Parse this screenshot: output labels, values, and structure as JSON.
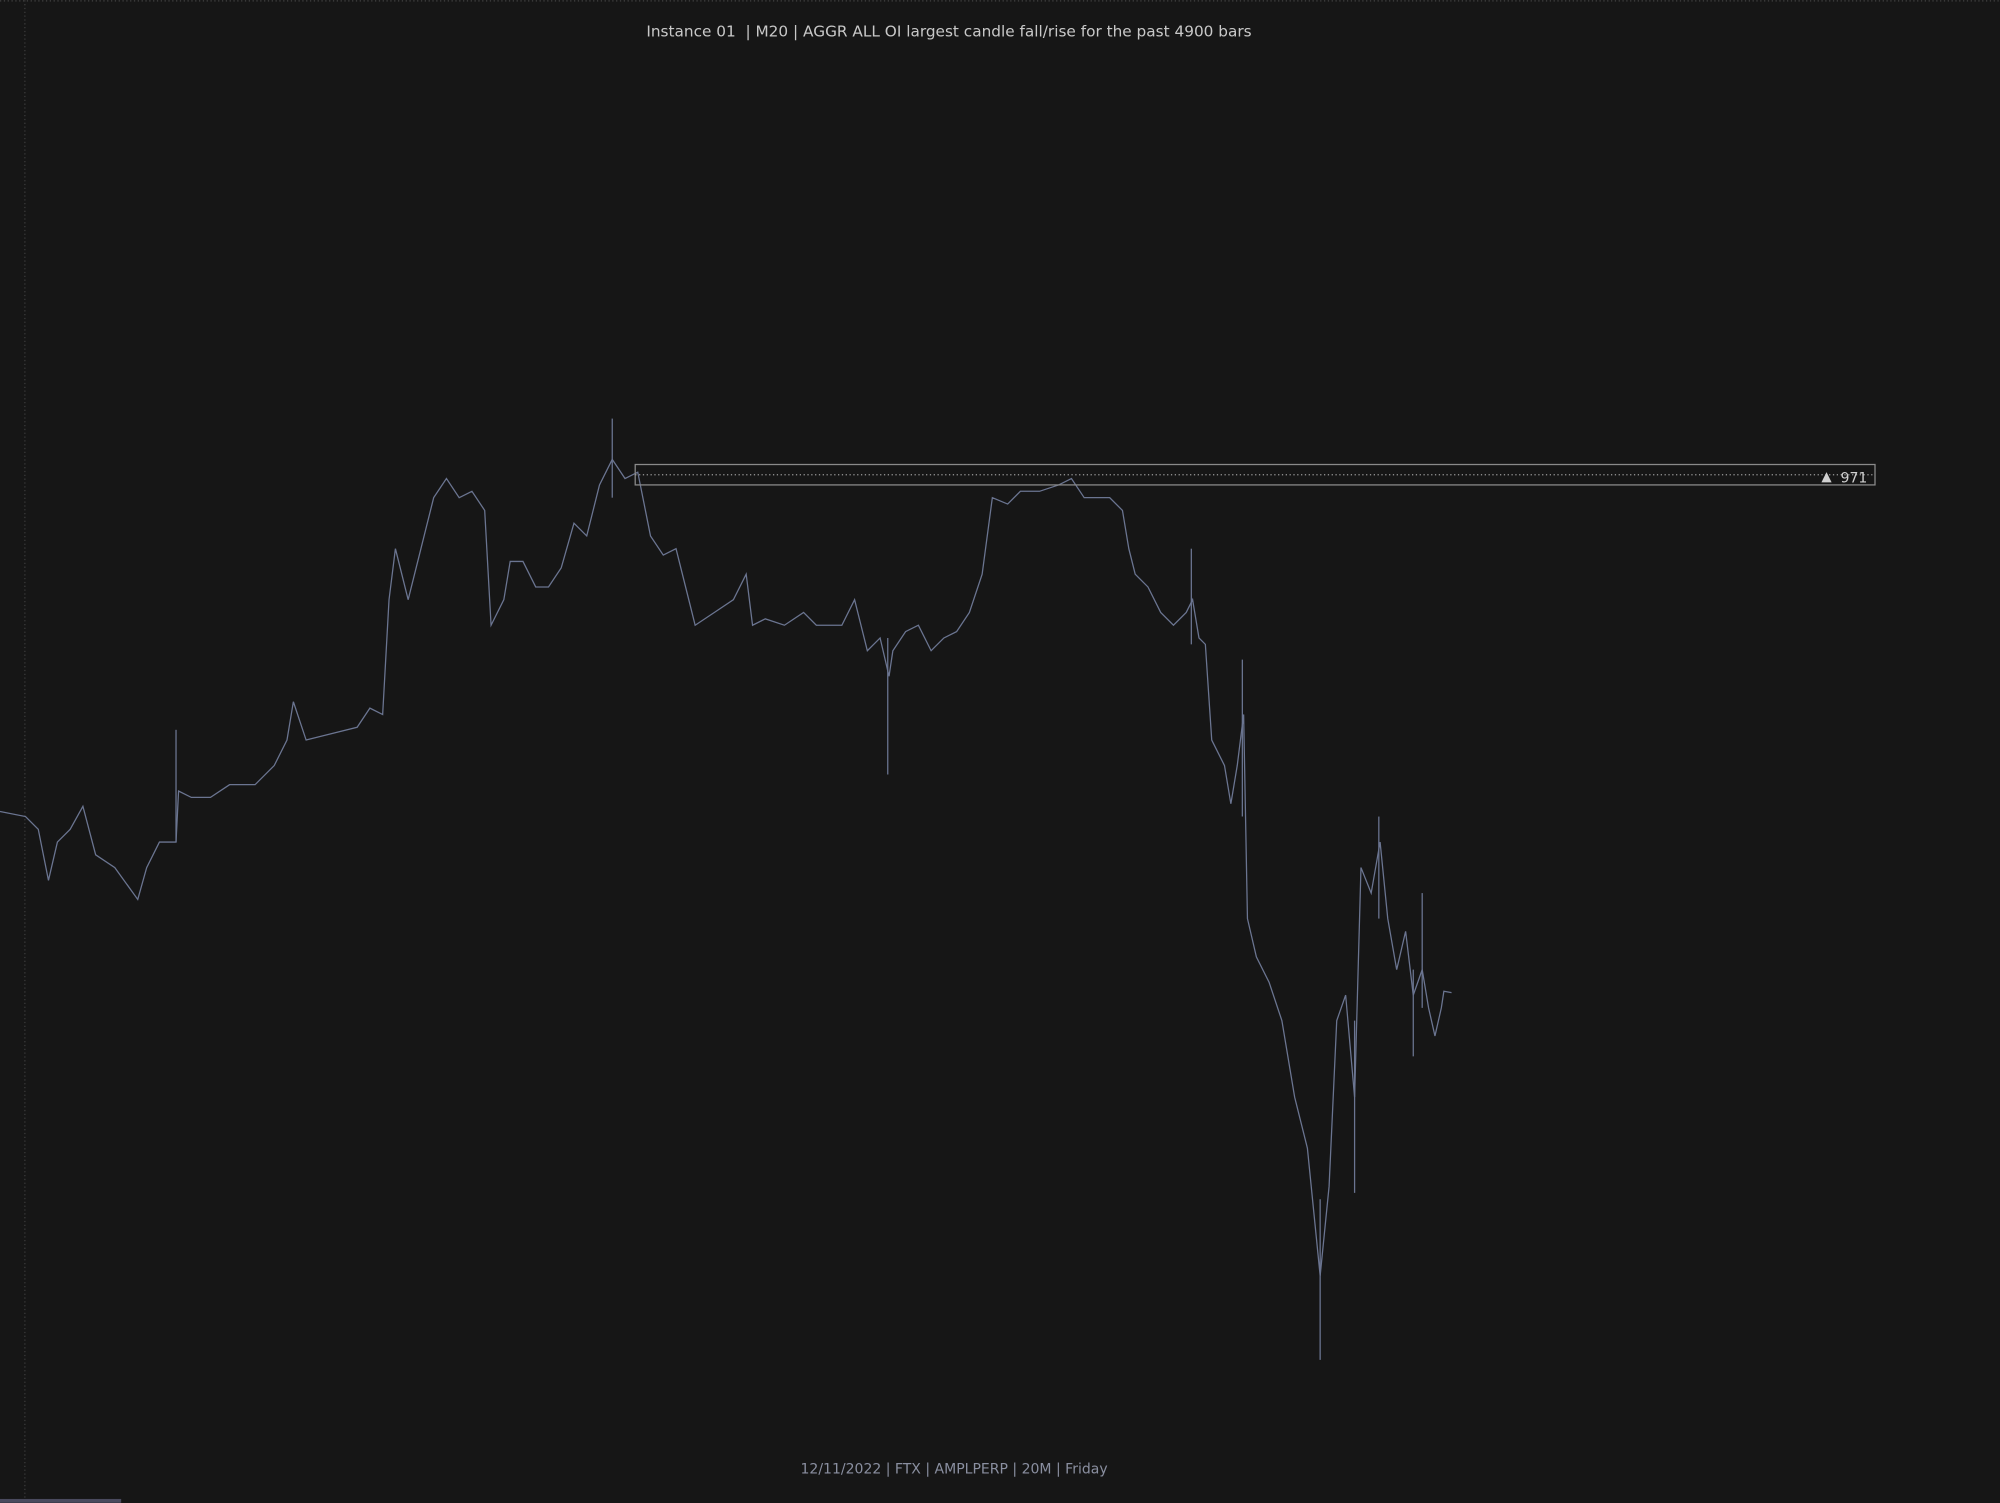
{
  "header": {
    "title": "Instance 01  | M20 | AGGR ALL OI largest candle fall/rise for the past 4900 bars"
  },
  "level": {
    "label": "971"
  },
  "footer": {
    "text": "12/11/2022 | FTX | AMPLPERP | 20M | Friday"
  }
}
